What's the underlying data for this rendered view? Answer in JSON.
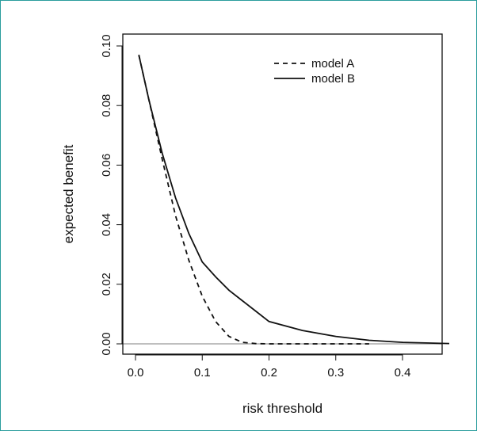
{
  "chart_data": {
    "type": "line",
    "title": "",
    "xlabel": "risk threshold",
    "ylabel": "expected benefit",
    "xlim": [
      0.0,
      0.47
    ],
    "ylim": [
      0.0,
      0.1
    ],
    "xticks": [
      0.0,
      0.1,
      0.2,
      0.3,
      0.4
    ],
    "xtick_labels": [
      "0.0",
      "0.1",
      "0.2",
      "0.3",
      "0.4"
    ],
    "yticks": [
      0.0,
      0.02,
      0.04,
      0.06,
      0.08,
      0.1
    ],
    "ytick_labels": [
      "0.00",
      "0.02",
      "0.04",
      "0.06",
      "0.08",
      "0.10"
    ],
    "grid": false,
    "legend_position": "top-right",
    "reference_line": {
      "y": 0.0,
      "color": "#bfbfbf"
    },
    "series": [
      {
        "name": "model A",
        "style": "dashed",
        "color": "#111111",
        "x": [
          0.005,
          0.02,
          0.04,
          0.06,
          0.08,
          0.1,
          0.12,
          0.14,
          0.16,
          0.18,
          0.2,
          0.25,
          0.3,
          0.35
        ],
        "y": [
          0.097,
          0.082,
          0.062,
          0.043,
          0.028,
          0.016,
          0.0075,
          0.0025,
          0.0005,
          0.0001,
          0.0,
          0.0,
          0.0,
          0.0
        ]
      },
      {
        "name": "model B",
        "style": "solid",
        "color": "#111111",
        "x": [
          0.005,
          0.02,
          0.04,
          0.06,
          0.08,
          0.1,
          0.12,
          0.14,
          0.16,
          0.18,
          0.2,
          0.25,
          0.3,
          0.35,
          0.4,
          0.47
        ],
        "y": [
          0.097,
          0.082,
          0.064,
          0.049,
          0.037,
          0.0275,
          0.0225,
          0.018,
          0.0145,
          0.011,
          0.0075,
          0.0045,
          0.0025,
          0.0012,
          0.0005,
          0.0001
        ]
      }
    ]
  }
}
